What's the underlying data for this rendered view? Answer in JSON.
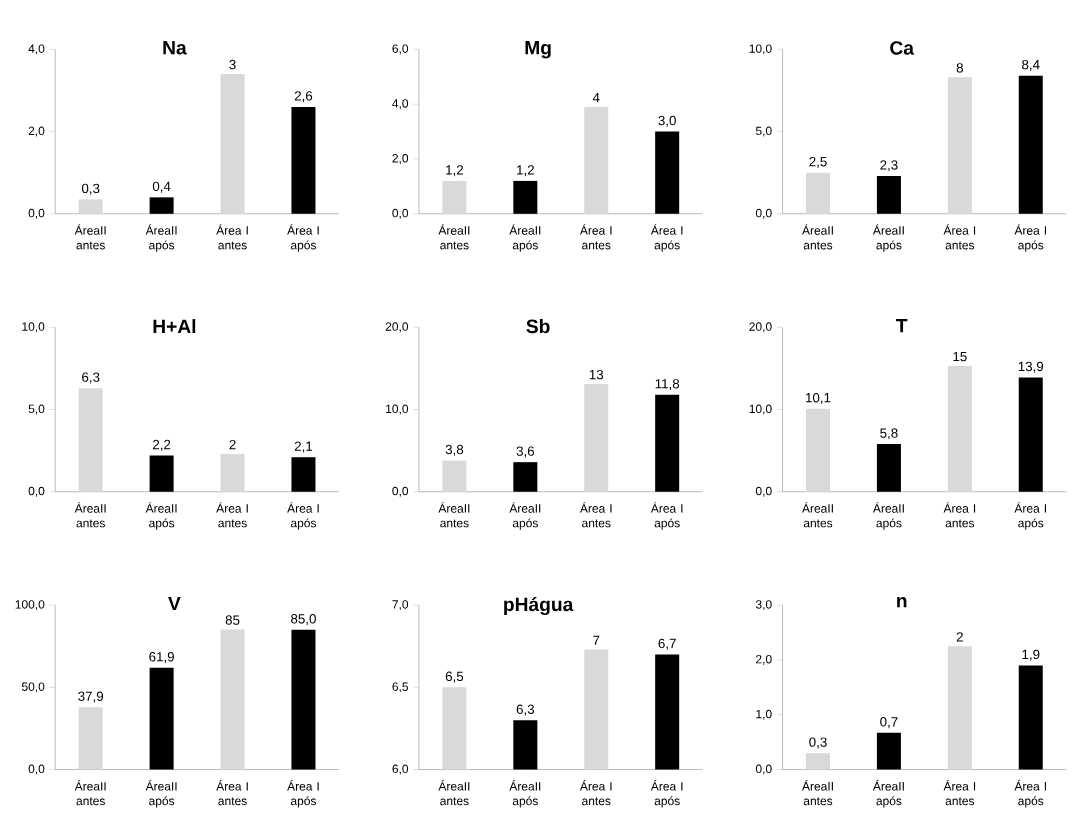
{
  "chart_data": [
    {
      "type": "bar",
      "title": "Na",
      "categories": [
        "ÁreaII antes",
        "ÁreaII após",
        "Área I antes",
        "Área I após"
      ],
      "values": [
        0.35,
        0.4,
        3.4,
        2.6
      ],
      "value_labels": [
        "0,3",
        "0,4",
        "3",
        "2,6"
      ],
      "colors": [
        "#d9d9d9",
        "#000000",
        "#d9d9d9",
        "#000000"
      ],
      "ylim": [
        0,
        4
      ],
      "yticks": [
        {
          "value": 0,
          "label": "0,0"
        },
        {
          "value": 2,
          "label": "2,0"
        },
        {
          "value": 4,
          "label": "4,0"
        }
      ]
    },
    {
      "type": "bar",
      "title": "Mg",
      "categories": [
        "ÁreaII antes",
        "ÁreaII após",
        "Área I antes",
        "Área I após"
      ],
      "values": [
        1.2,
        1.2,
        3.9,
        3.0
      ],
      "value_labels": [
        "1,2",
        "1,2",
        "4",
        "3,0"
      ],
      "colors": [
        "#d9d9d9",
        "#000000",
        "#d9d9d9",
        "#000000"
      ],
      "ylim": [
        0,
        6
      ],
      "yticks": [
        {
          "value": 0,
          "label": "0,0"
        },
        {
          "value": 2,
          "label": "2,0"
        },
        {
          "value": 4,
          "label": "4,0"
        },
        {
          "value": 6,
          "label": "6,0"
        }
      ]
    },
    {
      "type": "bar",
      "title": "Ca",
      "categories": [
        "ÁreaII antes",
        "ÁreaII após",
        "Área I antes",
        "Área I após"
      ],
      "values": [
        2.5,
        2.3,
        8.3,
        8.4
      ],
      "value_labels": [
        "2,5",
        "2,3",
        "8",
        "8,4"
      ],
      "colors": [
        "#d9d9d9",
        "#000000",
        "#d9d9d9",
        "#000000"
      ],
      "ylim": [
        0,
        10
      ],
      "yticks": [
        {
          "value": 0,
          "label": "0,0"
        },
        {
          "value": 5,
          "label": "5,0"
        },
        {
          "value": 10,
          "label": "10,0"
        }
      ]
    },
    {
      "type": "bar",
      "title": "H+Al",
      "categories": [
        "ÁreaII antes",
        "ÁreaII após",
        "Área I antes",
        "Área I após"
      ],
      "values": [
        6.3,
        2.2,
        2.3,
        2.1
      ],
      "value_labels": [
        "6,3",
        "2,2",
        "2",
        "2,1"
      ],
      "colors": [
        "#d9d9d9",
        "#000000",
        "#d9d9d9",
        "#000000"
      ],
      "ylim": [
        0,
        10
      ],
      "yticks": [
        {
          "value": 0,
          "label": "0,0"
        },
        {
          "value": 5,
          "label": "5,0"
        },
        {
          "value": 10,
          "label": "10,0"
        }
      ]
    },
    {
      "type": "bar",
      "title": "Sb",
      "categories": [
        "ÁreaII antes",
        "ÁreaII após",
        "Área I antes",
        "Área I após"
      ],
      "values": [
        3.8,
        3.6,
        13.1,
        11.8
      ],
      "value_labels": [
        "3,8",
        "3,6",
        "13",
        "11,8"
      ],
      "colors": [
        "#d9d9d9",
        "#000000",
        "#d9d9d9",
        "#000000"
      ],
      "ylim": [
        0,
        20
      ],
      "yticks": [
        {
          "value": 0,
          "label": "0,0"
        },
        {
          "value": 10,
          "label": "10,0"
        },
        {
          "value": 20,
          "label": "20,0"
        }
      ]
    },
    {
      "type": "bar",
      "title": "T",
      "categories": [
        "ÁreaII antes",
        "ÁreaII após",
        "Área I antes",
        "Área I após"
      ],
      "values": [
        10.1,
        5.8,
        15.3,
        13.9
      ],
      "value_labels": [
        "10,1",
        "5,8",
        "15",
        "13,9"
      ],
      "colors": [
        "#d9d9d9",
        "#000000",
        "#d9d9d9",
        "#000000"
      ],
      "ylim": [
        0,
        20
      ],
      "yticks": [
        {
          "value": 0,
          "label": "0,0"
        },
        {
          "value": 10,
          "label": "10,0"
        },
        {
          "value": 20,
          "label": "20,0"
        }
      ]
    },
    {
      "type": "bar",
      "title": "V",
      "categories": [
        "ÁreaII antes",
        "ÁreaII após",
        "Área I antes",
        "Área I após"
      ],
      "values": [
        37.9,
        61.9,
        85.2,
        85.0
      ],
      "value_labels": [
        "37,9",
        "61,9",
        "85",
        "85,0"
      ],
      "colors": [
        "#d9d9d9",
        "#000000",
        "#d9d9d9",
        "#000000"
      ],
      "ylim": [
        0,
        100
      ],
      "yticks": [
        {
          "value": 0,
          "label": "0,0"
        },
        {
          "value": 50,
          "label": "50,0"
        },
        {
          "value": 100,
          "label": "100,0"
        }
      ]
    },
    {
      "type": "bar",
      "title": "pHágua",
      "categories": [
        "ÁreaII antes",
        "ÁreaII após",
        "Área I antes",
        "Área I após"
      ],
      "values": [
        6.5,
        6.3,
        6.73,
        6.7
      ],
      "value_labels": [
        "6,5",
        "6,3",
        "7",
        "6,7"
      ],
      "colors": [
        "#d9d9d9",
        "#000000",
        "#d9d9d9",
        "#000000"
      ],
      "ylim": [
        6,
        7
      ],
      "yticks": [
        {
          "value": 6,
          "label": "6,0"
        },
        {
          "value": 6.5,
          "label": "6,5"
        },
        {
          "value": 7,
          "label": "7,0"
        }
      ]
    },
    {
      "type": "bar",
      "title": "n",
      "categories": [
        "ÁreaII antes",
        "ÁreaII após",
        "Área I antes",
        "Área I após"
      ],
      "values": [
        0.3,
        0.67,
        2.25,
        1.9
      ],
      "value_labels": [
        "0,3",
        "0,7",
        "2",
        "1,9"
      ],
      "colors": [
        "#d9d9d9",
        "#000000",
        "#d9d9d9",
        "#000000"
      ],
      "ylim": [
        0,
        3
      ],
      "yticks": [
        {
          "value": 0,
          "label": "0,0"
        },
        {
          "value": 1,
          "label": "1,0"
        },
        {
          "value": 2,
          "label": "2,0"
        },
        {
          "value": 3,
          "label": "3,0"
        }
      ]
    }
  ]
}
